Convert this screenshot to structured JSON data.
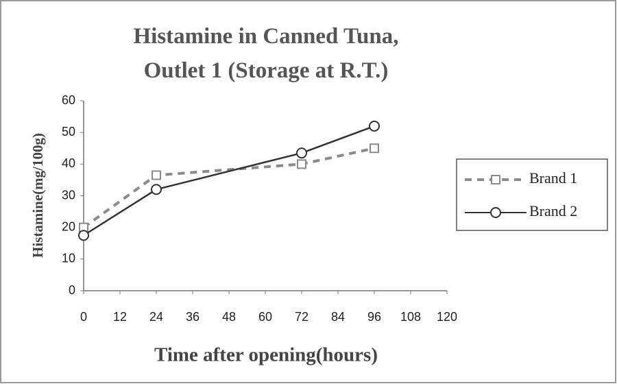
{
  "chart_data": {
    "type": "line",
    "title": "Histamine in Canned Tuna, Outlet 1 (Storage at R.T.)",
    "x_label": "Time after opening(hours)",
    "y_label": "Histamine(mg/100g)",
    "x": [
      0,
      24,
      72,
      96
    ],
    "series": [
      {
        "name": "Brand 1",
        "color": "#8a8a8a",
        "dash": true,
        "marker": "square",
        "values": [
          20,
          36.5,
          40,
          45
        ]
      },
      {
        "name": "Brand 2",
        "color": "#333333",
        "dash": false,
        "marker": "circle",
        "values": [
          17.5,
          32,
          43.5,
          52
        ]
      }
    ],
    "xlim": [
      0,
      120
    ],
    "xticks": [
      0,
      12,
      24,
      36,
      48,
      60,
      72,
      84,
      96,
      108,
      120
    ],
    "ylim": [
      0,
      60
    ],
    "yticks": [
      0,
      10,
      20,
      30,
      40,
      50,
      60
    ],
    "grid": false,
    "legend": "right"
  }
}
